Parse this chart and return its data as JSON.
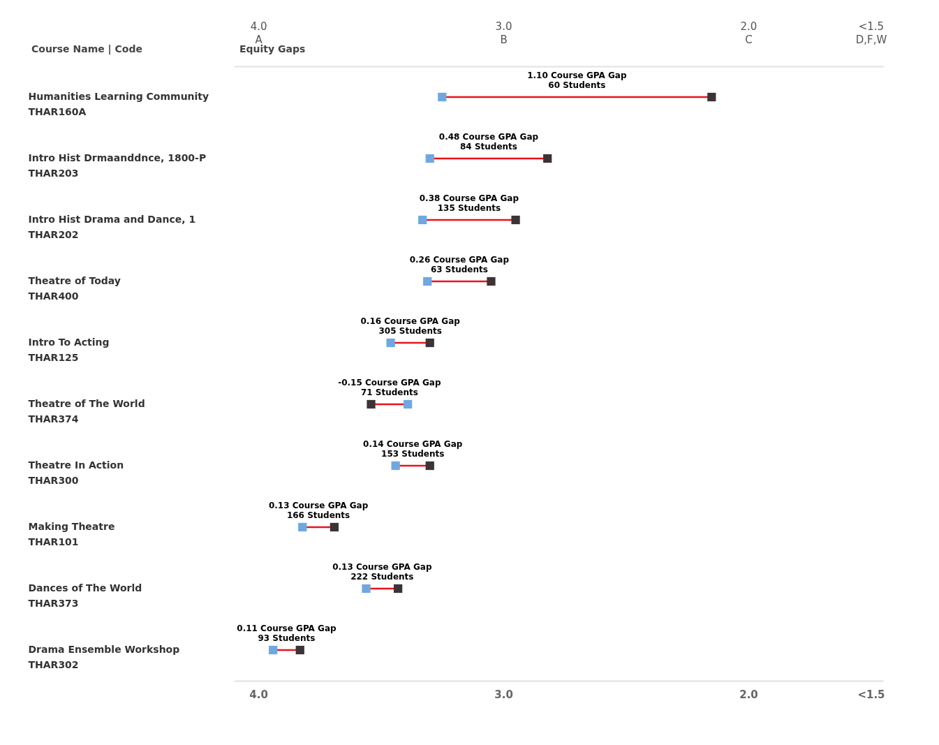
{
  "chart_data": {
    "type": "scatter",
    "orientation": "horizontal",
    "marker": "square",
    "categories": [
      "Humanities Learning Community\nTHAR160A",
      "Intro Hist Drmaanddnce, 1800-P\nTHAR203",
      "Intro Hist Drama and Dance, 1\nTHAR202",
      "Theatre of Today\nTHAR400",
      "Intro To Acting\nTHAR125",
      "Theatre of The World\nTHAR374",
      "Theatre In Action\nTHAR300",
      "Making Theatre\nTHAR101",
      "Dances of The World\nTHAR373",
      "Drama Ensemble Workshop\nTHAR302"
    ],
    "series": [
      {
        "color": "#6fa8e0",
        "values": [
          3.25,
          3.3,
          3.33,
          3.31,
          3.46,
          3.39,
          3.44,
          3.82,
          3.56,
          3.94
        ]
      },
      {
        "color": "#3d3236",
        "values": [
          2.15,
          2.82,
          2.95,
          3.05,
          3.3,
          3.54,
          3.3,
          3.69,
          3.43,
          3.83
        ]
      }
    ],
    "xlim": [
      4.1,
      1.45
    ],
    "xticks": [
      {
        "value": 4,
        "label": "4.0"
      },
      {
        "value": 3,
        "label": "3.0"
      },
      {
        "value": 2,
        "label": "2.0"
      },
      {
        "value": 1.5,
        "label": "<1.5"
      }
    ],
    "x2lim": [
      4.1,
      1.45
    ],
    "x2ticks": [
      {
        "value": 4,
        "label": "4.0\nA"
      },
      {
        "value": 3,
        "label": "3.0\nB"
      },
      {
        "value": 2,
        "label": "2.0\nC"
      },
      {
        "value": 1.5,
        "label": "<1.5\nD,F,W"
      }
    ],
    "annotations": [
      "Course Name | Code",
      "Equity Gaps",
      "1.10 Course GPA Gap\n60 Students",
      "0.48 Course GPA Gap\n84 Students",
      "0.38 Course GPA Gap\n135 Students",
      "0.26 Course GPA Gap\n63 Students",
      "0.16 Course GPA Gap\n305 Students",
      "-0.15 Course GPA Gap\n71 Students",
      "0.14 Course GPA Gap\n153 Students",
      "0.13 Course GPA Gap\n166 Students",
      "0.13 Course GPA Gap\n222 Students",
      "0.11 Course GPA Gap\n93 Students"
    ]
  }
}
